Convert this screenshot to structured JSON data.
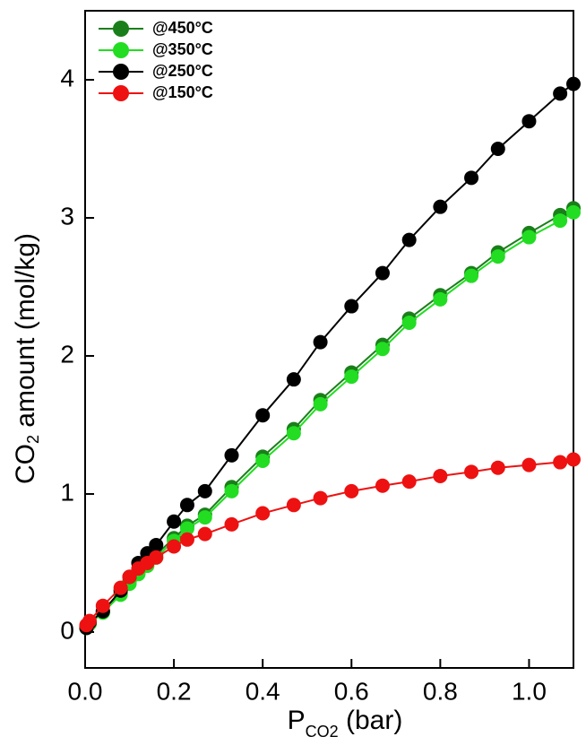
{
  "chart_data": {
    "type": "line",
    "xlabel": {
      "main": "P",
      "sub": "CO2",
      "rest": " (bar)"
    },
    "ylabel": {
      "main": "CO",
      "sub": "2",
      "rest": " amount (mol/kg)"
    },
    "x": [
      0.003,
      0.01,
      0.04,
      0.08,
      0.1,
      0.12,
      0.14,
      0.16,
      0.2,
      0.23,
      0.27,
      0.33,
      0.4,
      0.47,
      0.53,
      0.6,
      0.67,
      0.73,
      0.8,
      0.87,
      0.93,
      1.0,
      1.07,
      1.1
    ],
    "series": [
      {
        "name": "@450°C",
        "color": "#1a7f1a",
        "values": [
          0.03,
          0.06,
          0.15,
          0.28,
          0.37,
          0.44,
          0.5,
          0.56,
          0.68,
          0.77,
          0.85,
          1.05,
          1.27,
          1.47,
          1.68,
          1.88,
          2.08,
          2.27,
          2.44,
          2.6,
          2.75,
          2.89,
          3.02,
          3.07
        ]
      },
      {
        "name": "@350°C",
        "color": "#22dd22",
        "values": [
          0.03,
          0.06,
          0.14,
          0.27,
          0.35,
          0.42,
          0.48,
          0.54,
          0.66,
          0.75,
          0.83,
          1.02,
          1.24,
          1.44,
          1.65,
          1.85,
          2.05,
          2.24,
          2.41,
          2.58,
          2.72,
          2.86,
          2.98,
          3.04
        ]
      },
      {
        "name": "@250°C",
        "color": "#000000",
        "values": [
          0.03,
          0.07,
          0.15,
          0.3,
          0.4,
          0.5,
          0.57,
          0.63,
          0.8,
          0.92,
          1.02,
          1.28,
          1.57,
          1.83,
          2.1,
          2.36,
          2.6,
          2.84,
          3.08,
          3.29,
          3.5,
          3.7,
          3.9,
          3.97
        ]
      },
      {
        "name": "@150°C",
        "color": "#ee1111",
        "values": [
          0.05,
          0.08,
          0.19,
          0.32,
          0.4,
          0.46,
          0.5,
          0.54,
          0.62,
          0.67,
          0.71,
          0.78,
          0.86,
          0.92,
          0.97,
          1.02,
          1.06,
          1.09,
          1.13,
          1.16,
          1.19,
          1.21,
          1.23,
          1.25
        ]
      }
    ],
    "xlim": [
      0,
      1.1
    ],
    "ylim": [
      -0.26,
      4.5
    ],
    "xticks": [
      {
        "value": 0,
        "label": "0.0"
      },
      {
        "value": 0.2,
        "label": "0.2"
      },
      {
        "value": 0.4,
        "label": "0.4"
      },
      {
        "value": 0.6,
        "label": "0.6"
      },
      {
        "value": 0.8,
        "label": "0.8"
      },
      {
        "value": 1,
        "label": "1.0"
      }
    ],
    "yticks": [
      0,
      1,
      2,
      3,
      4
    ],
    "legend": "upper-left"
  }
}
